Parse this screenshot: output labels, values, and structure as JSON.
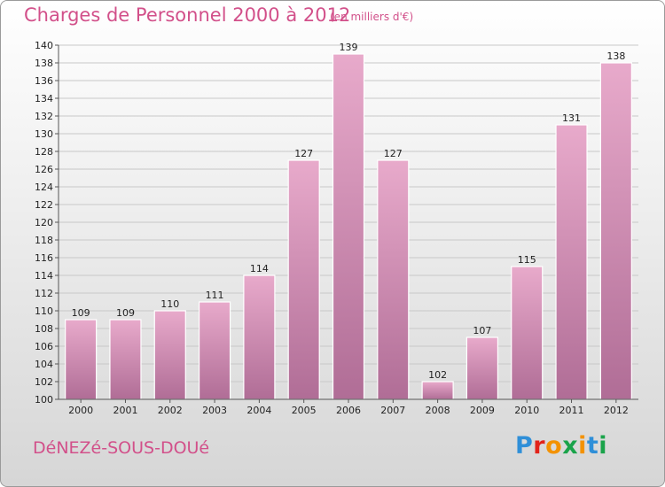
{
  "header": {
    "title": "Charges de Personnel 2000 à 2012",
    "subtitle": "(en milliers d'€)"
  },
  "footer": {
    "commune": "DéNEZé-SOUS-DOUé",
    "logo": {
      "letters": [
        "P",
        "r",
        "o",
        "x",
        "i",
        "t",
        "i"
      ]
    }
  },
  "colors": {
    "accent": "#d2508a",
    "bar_top": "#e8aacb",
    "bar_bottom": "#b06d96",
    "grid": "#c8c8c8",
    "logo": [
      "#2f8fd8",
      "#e2231a",
      "#f39200",
      "#1aa34a",
      "#f39200",
      "#2f8fd8",
      "#1aa34a"
    ]
  },
  "chart_data": {
    "type": "bar",
    "title": "Charges de Personnel 2000 à 2012",
    "subtitle": "(en milliers d'€)",
    "categories": [
      "2000",
      "2001",
      "2002",
      "2003",
      "2004",
      "2005",
      "2006",
      "2007",
      "2008",
      "2009",
      "2010",
      "2011",
      "2012"
    ],
    "values": [
      109,
      109,
      110,
      111,
      114,
      127,
      139,
      127,
      102,
      107,
      115,
      131,
      138
    ],
    "ylim": [
      100,
      140
    ],
    "ytick_step": 2,
    "grid": true,
    "xlabel": "",
    "ylabel": ""
  }
}
